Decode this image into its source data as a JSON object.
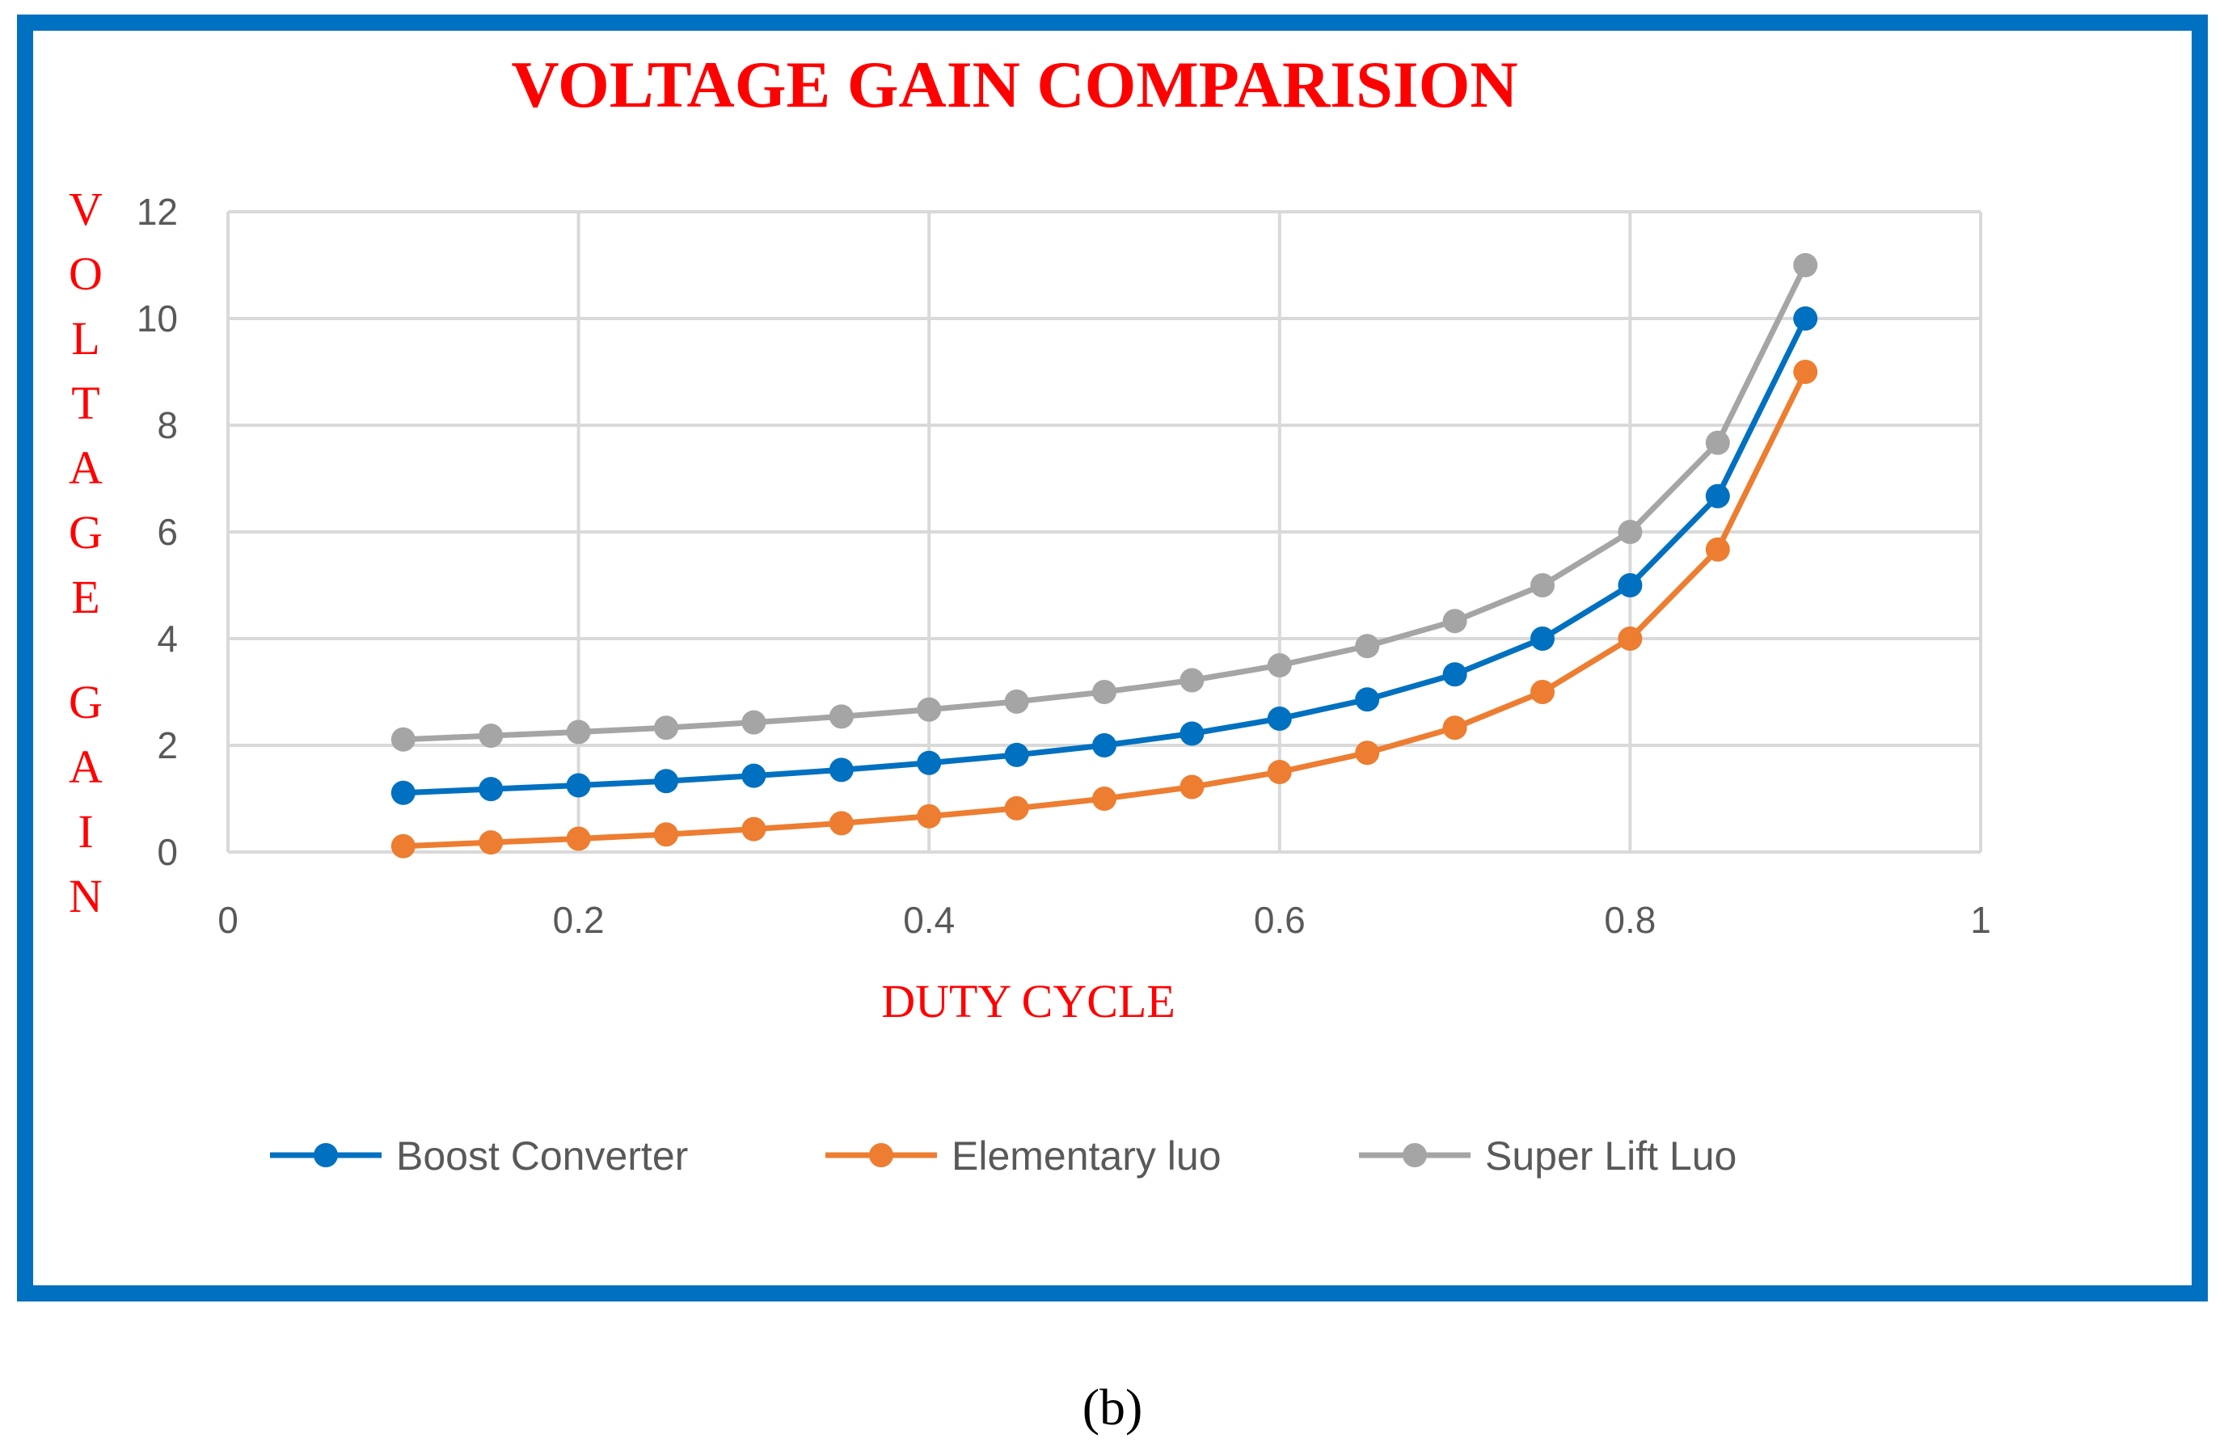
{
  "chart_data": {
    "type": "line",
    "title": "VOLTAGE GAIN COMPARISION",
    "xlabel": "DUTY CYCLE",
    "ylabel": "VOLTAGE GAIN",
    "xlim": [
      0,
      1
    ],
    "ylim": [
      0,
      12
    ],
    "xticks": [
      "0",
      "0.2",
      "0.4",
      "0.6",
      "0.8",
      "1"
    ],
    "yticks": [
      "0",
      "2",
      "4",
      "6",
      "8",
      "10",
      "12"
    ],
    "grid": true,
    "legend_position": "bottom",
    "x": [
      0.1,
      0.15,
      0.2,
      0.25,
      0.3,
      0.35,
      0.4,
      0.45,
      0.5,
      0.55,
      0.6,
      0.65,
      0.7,
      0.75,
      0.8,
      0.85,
      0.9
    ],
    "series": [
      {
        "name": "Boost Converter",
        "color": "#0070c0",
        "values": [
          1.11,
          1.18,
          1.25,
          1.33,
          1.43,
          1.54,
          1.67,
          1.82,
          2.0,
          2.22,
          2.5,
          2.86,
          3.33,
          4.0,
          5.0,
          6.67,
          10.0
        ]
      },
      {
        "name": "Elementary luo",
        "color": "#ed7d31",
        "values": [
          0.11,
          0.18,
          0.25,
          0.33,
          0.43,
          0.54,
          0.67,
          0.82,
          1.0,
          1.22,
          1.5,
          1.86,
          2.33,
          3.0,
          4.0,
          5.67,
          9.0
        ]
      },
      {
        "name": "Super Lift Luo",
        "color": "#a5a5a5",
        "values": [
          2.11,
          2.18,
          2.25,
          2.33,
          2.43,
          2.54,
          2.67,
          2.82,
          3.0,
          3.22,
          3.5,
          3.86,
          4.33,
          5.0,
          6.0,
          7.67,
          11.0
        ]
      }
    ]
  },
  "caption": "(b)",
  "frame_color": "#0070c0"
}
